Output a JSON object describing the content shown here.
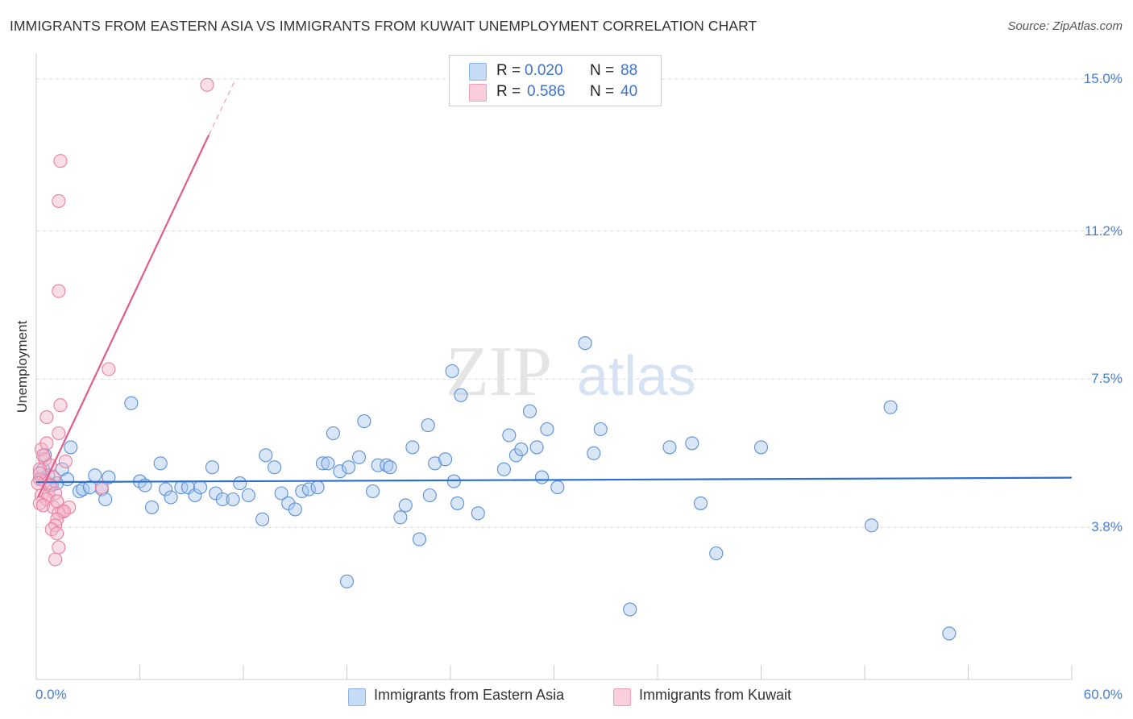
{
  "chart_data": {
    "type": "scatter",
    "title": "IMMIGRANTS FROM EASTERN ASIA VS IMMIGRANTS FROM KUWAIT UNEMPLOYMENT CORRELATION CHART",
    "source": "Source: ZipAtlas.com",
    "ylabel": "Unemployment",
    "xlabel": "",
    "xlim": [
      0,
      60
    ],
    "ylim": [
      0,
      15.4
    ],
    "y_ticks": [
      {
        "value": 3.8,
        "label": "3.8%"
      },
      {
        "value": 7.5,
        "label": "7.5%"
      },
      {
        "value": 11.2,
        "label": "11.2%"
      },
      {
        "value": 15.0,
        "label": "15.0%"
      }
    ],
    "x_ticks": [
      {
        "value": 0,
        "label": "0.0%"
      },
      {
        "value": 60,
        "label": "60.0%"
      }
    ],
    "grid": true,
    "watermark": "ZIPatlas",
    "legend_stats": [
      {
        "r_label": "R =",
        "r_value": "0.020",
        "n_label": "N =",
        "n_value": "88",
        "color": "#a9c8ef"
      },
      {
        "r_label": "R =",
        "r_value": "0.586",
        "n_label": "N =",
        "n_value": "40",
        "color": "#f5b6c9"
      }
    ],
    "series": [
      {
        "name": "Immigrants from Eastern Asia",
        "fill": "#a9c8ef",
        "stroke": "#5b8fd6",
        "line_color": "#2e6fcf",
        "trend": {
          "x0": 0,
          "y0": 4.93,
          "x1": 60,
          "y1": 5.04
        },
        "points": [
          [
            0.3,
            5.0
          ],
          [
            0.4,
            5.25
          ],
          [
            0.5,
            5.6
          ],
          [
            0.7,
            5.1
          ],
          [
            0.9,
            4.85
          ],
          [
            1.2,
            4.9
          ],
          [
            1.5,
            5.25
          ],
          [
            1.8,
            5.0
          ],
          [
            2.0,
            5.8
          ],
          [
            2.5,
            4.7
          ],
          [
            2.7,
            4.75
          ],
          [
            3.1,
            4.8
          ],
          [
            3.4,
            5.1
          ],
          [
            3.8,
            4.75
          ],
          [
            4.0,
            4.5
          ],
          [
            5.5,
            6.9
          ],
          [
            6.0,
            4.95
          ],
          [
            6.3,
            4.85
          ],
          [
            6.7,
            4.3
          ],
          [
            7.2,
            5.4
          ],
          [
            7.5,
            4.75
          ],
          [
            7.8,
            4.55
          ],
          [
            8.4,
            4.8
          ],
          [
            8.8,
            4.8
          ],
          [
            9.2,
            4.6
          ],
          [
            9.5,
            4.8
          ],
          [
            10.2,
            5.3
          ],
          [
            10.4,
            4.65
          ],
          [
            10.8,
            4.5
          ],
          [
            11.4,
            4.5
          ],
          [
            11.8,
            4.9
          ],
          [
            12.3,
            4.6
          ],
          [
            13.1,
            4.0
          ],
          [
            13.3,
            5.6
          ],
          [
            13.8,
            5.3
          ],
          [
            14.2,
            4.65
          ],
          [
            14.6,
            4.4
          ],
          [
            15.0,
            4.25
          ],
          [
            15.4,
            4.7
          ],
          [
            15.8,
            4.75
          ],
          [
            16.3,
            4.8
          ],
          [
            16.6,
            5.4
          ],
          [
            16.9,
            5.4
          ],
          [
            17.2,
            6.15
          ],
          [
            17.6,
            5.2
          ],
          [
            18.1,
            5.3
          ],
          [
            18.7,
            5.55
          ],
          [
            19.0,
            6.45
          ],
          [
            19.5,
            4.7
          ],
          [
            19.8,
            5.35
          ],
          [
            20.3,
            5.35
          ],
          [
            20.5,
            5.3
          ],
          [
            21.1,
            4.05
          ],
          [
            21.4,
            4.35
          ],
          [
            21.8,
            5.8
          ],
          [
            22.2,
            3.5
          ],
          [
            22.7,
            6.35
          ],
          [
            22.8,
            4.6
          ],
          [
            23.1,
            5.4
          ],
          [
            23.7,
            5.5
          ],
          [
            24.1,
            7.7
          ],
          [
            24.2,
            4.95
          ],
          [
            24.4,
            4.4
          ],
          [
            24.6,
            7.1
          ],
          [
            25.6,
            4.15
          ],
          [
            27.1,
            5.25
          ],
          [
            27.4,
            6.1
          ],
          [
            27.8,
            5.6
          ],
          [
            28.1,
            5.75
          ],
          [
            28.6,
            6.7
          ],
          [
            29.0,
            5.8
          ],
          [
            29.3,
            5.05
          ],
          [
            29.6,
            6.25
          ],
          [
            30.2,
            4.8
          ],
          [
            31.8,
            8.4
          ],
          [
            32.3,
            5.65
          ],
          [
            32.7,
            6.25
          ],
          [
            34.4,
            1.75
          ],
          [
            36.7,
            5.8
          ],
          [
            38.0,
            5.9
          ],
          [
            38.5,
            4.4
          ],
          [
            39.4,
            3.15
          ],
          [
            42.0,
            5.8
          ],
          [
            48.4,
            3.85
          ],
          [
            49.5,
            6.8
          ],
          [
            52.9,
            1.15
          ],
          [
            18.0,
            2.45
          ],
          [
            4.2,
            5.05
          ]
        ]
      },
      {
        "name": "Immigrants from Kuwait",
        "fill": "#f5b6c9",
        "stroke": "#e97fa0",
        "line_color": "#e05c8a",
        "trend": {
          "x0": 0.1,
          "y0": 4.55,
          "x1": 10.0,
          "y1": 13.6
        },
        "trend_dashed": {
          "x0": 10.0,
          "y0": 13.6,
          "x1": 11.5,
          "y1": 14.95
        },
        "points": [
          [
            9.9,
            14.85
          ],
          [
            1.4,
            12.95
          ],
          [
            1.3,
            11.95
          ],
          [
            1.3,
            9.7
          ],
          [
            4.2,
            7.75
          ],
          [
            1.4,
            6.85
          ],
          [
            0.6,
            6.55
          ],
          [
            1.3,
            6.15
          ],
          [
            0.3,
            5.75
          ],
          [
            0.6,
            5.9
          ],
          [
            0.5,
            5.5
          ],
          [
            0.8,
            5.35
          ],
          [
            1.7,
            5.45
          ],
          [
            0.2,
            5.25
          ],
          [
            1.0,
            5.05
          ],
          [
            0.2,
            5.0
          ],
          [
            0.5,
            4.95
          ],
          [
            0.8,
            4.85
          ],
          [
            0.3,
            4.6
          ],
          [
            0.7,
            4.6
          ],
          [
            1.1,
            4.65
          ],
          [
            0.6,
            4.5
          ],
          [
            0.2,
            4.4
          ],
          [
            0.4,
            4.35
          ],
          [
            1.0,
            4.3
          ],
          [
            1.5,
            4.2
          ],
          [
            1.9,
            4.3
          ],
          [
            1.3,
            4.15
          ],
          [
            1.6,
            4.2
          ],
          [
            1.2,
            4.0
          ],
          [
            1.1,
            3.85
          ],
          [
            0.9,
            3.75
          ],
          [
            1.2,
            3.65
          ],
          [
            1.3,
            3.3
          ],
          [
            1.1,
            3.0
          ],
          [
            0.2,
            5.15
          ],
          [
            0.1,
            4.9
          ],
          [
            3.8,
            4.8
          ],
          [
            1.2,
            4.45
          ],
          [
            0.4,
            5.6
          ]
        ]
      }
    ]
  }
}
